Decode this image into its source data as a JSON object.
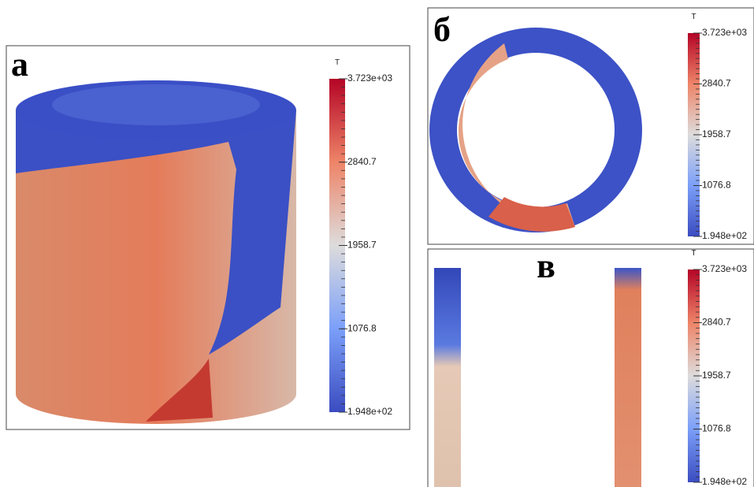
{
  "panels": [
    {
      "label": "а",
      "colorbar": {
        "title": "T",
        "ticks": [
          "3.723e+03",
          "2840.7",
          "1958.7",
          "1076.8",
          "1.948e+02"
        ]
      }
    },
    {
      "label": "б",
      "colorbar": {
        "title": "T",
        "ticks": [
          "3.723e+03",
          "2840.7",
          "1958.7",
          "1076.8",
          "1.948e+02"
        ]
      }
    },
    {
      "label": "в",
      "colorbar": {
        "title": "T",
        "ticks": [
          "3.723e+03",
          "2840.7",
          "1958.7",
          "1076.8",
          "1.948e+02"
        ]
      }
    }
  ]
}
